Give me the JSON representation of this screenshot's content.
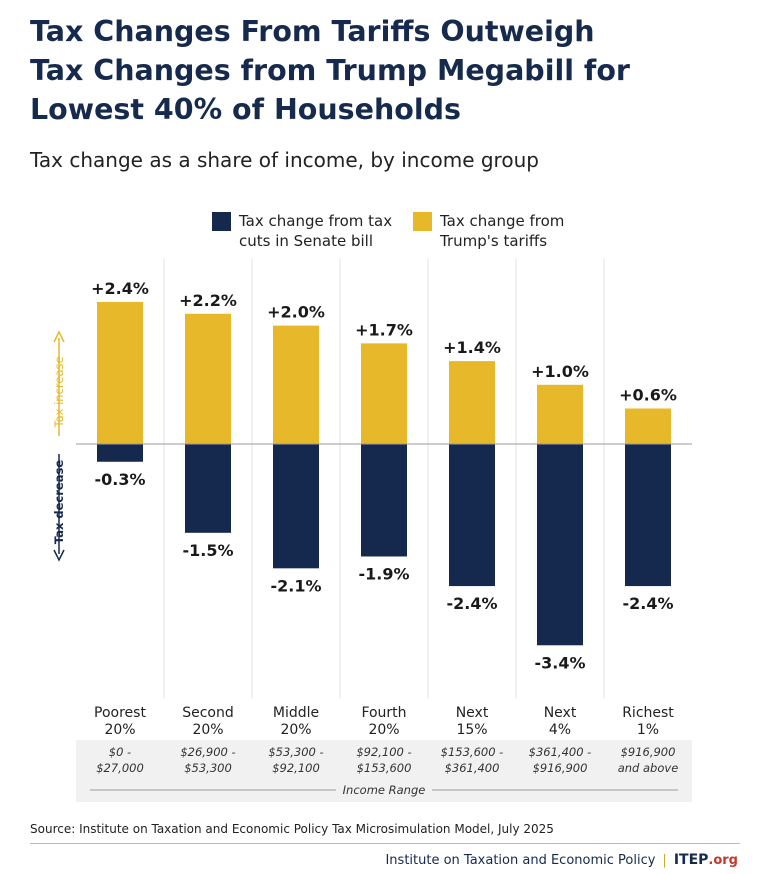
{
  "title_lines": [
    "Tax Changes From Tariffs Outweigh",
    "Tax Changes from Trump Megabill for",
    "Lowest 40% of Households"
  ],
  "subtitle": "Tax change as a share of income, by income group",
  "legend": [
    {
      "label_lines": [
        "Tax change from tax",
        "cuts in Senate bill"
      ],
      "color": "#15294e",
      "icon": "navy-square"
    },
    {
      "label_lines": [
        "Tax change from",
        "Trump's tariffs"
      ],
      "color": "#e6b82a",
      "icon": "gold-square"
    }
  ],
  "axis_annotations": {
    "increase": "Tax increase",
    "decrease": "Tax decrease"
  },
  "chart_data": {
    "type": "bar",
    "categories": [
      [
        "Poorest",
        "20%"
      ],
      [
        "Second",
        "20%"
      ],
      [
        "Middle",
        "20%"
      ],
      [
        "Fourth",
        "20%"
      ],
      [
        "Next",
        "15%"
      ],
      [
        "Next",
        "4%"
      ],
      [
        "Richest",
        "1%"
      ]
    ],
    "income_ranges": [
      [
        "$0 -",
        "$27,000"
      ],
      [
        "$26,900 -",
        "$53,300"
      ],
      [
        "$53,300 -",
        "$92,100"
      ],
      [
        "$92,100 -",
        "$153,600"
      ],
      [
        "$153,600 -",
        "$361,400"
      ],
      [
        "$361,400 -",
        "$916,900"
      ],
      [
        "$916,900",
        "and above"
      ]
    ],
    "income_range_label": "Income Range",
    "series": [
      {
        "name": "Tax change from Trump's tariffs",
        "color": "#e6b82a",
        "values": [
          2.4,
          2.2,
          2.0,
          1.7,
          1.4,
          1.0,
          0.6
        ],
        "labels": [
          "+2.4%",
          "+2.2%",
          "+2.0%",
          "+1.7%",
          "+1.4%",
          "+1.0%",
          "+0.6%"
        ]
      },
      {
        "name": "Tax change from tax cuts in Senate bill",
        "color": "#15294e",
        "values": [
          -0.3,
          -1.5,
          -2.1,
          -1.9,
          -2.4,
          -3.4,
          -2.4
        ],
        "labels": [
          "-0.3%",
          "-1.5%",
          "-2.1%",
          "-1.9%",
          "-2.4%",
          "-3.4%",
          "-2.4%"
        ]
      }
    ],
    "unit": "%",
    "ylim": [
      -3.4,
      2.4
    ],
    "grid": false,
    "legend_position": "top"
  },
  "source": "Source: Institute on Taxation and Economic Policy Tax Microsimulation Model, July 2025",
  "footer": {
    "org_name": "Institute on Taxation and Economic Policy",
    "separator": "|",
    "logo_main": "ITEP",
    "logo_suffix": ".org"
  }
}
